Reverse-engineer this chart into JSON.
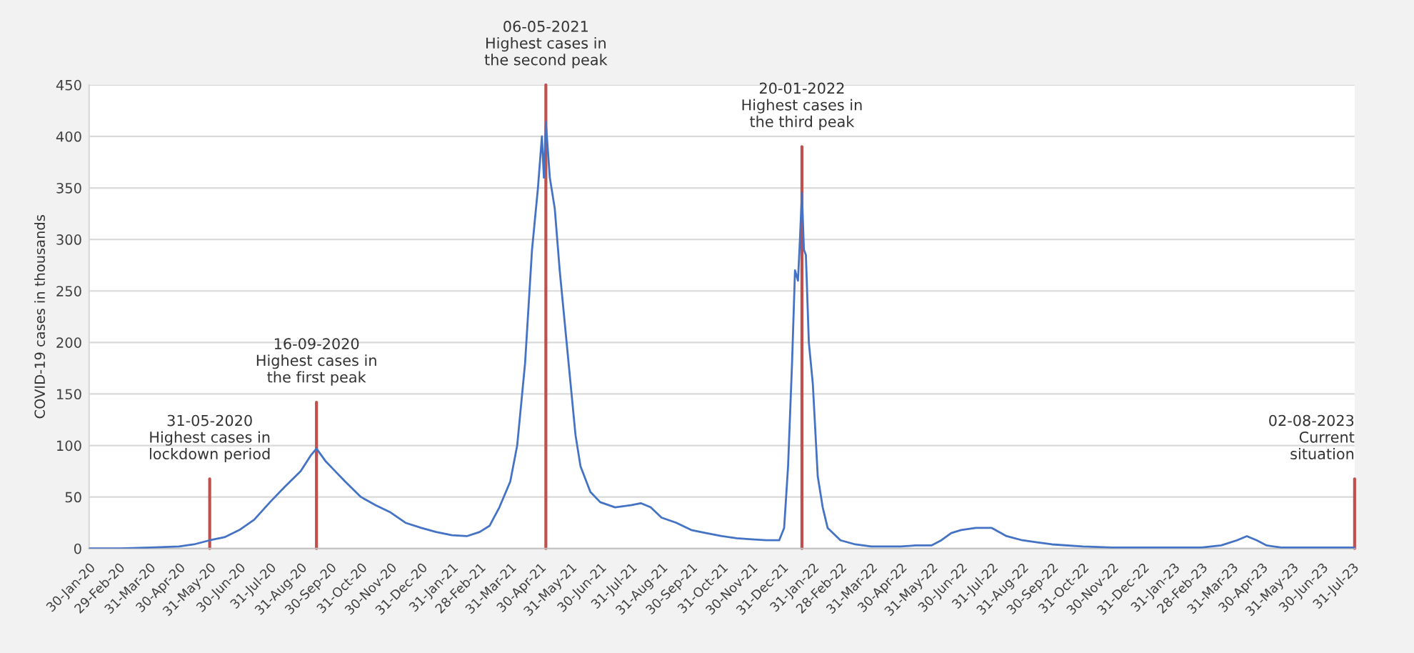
{
  "chart_data": {
    "type": "line",
    "ylabel": "COVID-19 cases in thousands",
    "x": [
      "2020-01-30",
      "2020-03-01",
      "2020-04-01",
      "2020-04-30",
      "2020-05-15",
      "2020-05-31",
      "2020-06-15",
      "2020-06-30",
      "2020-07-15",
      "2020-07-31",
      "2020-08-15",
      "2020-08-31",
      "2020-09-10",
      "2020-09-16",
      "2020-09-25",
      "2020-10-05",
      "2020-10-15",
      "2020-10-31",
      "2020-11-15",
      "2020-11-30",
      "2020-12-15",
      "2020-12-31",
      "2021-01-15",
      "2021-01-31",
      "2021-02-15",
      "2021-02-28",
      "2021-03-10",
      "2021-03-20",
      "2021-03-31",
      "2021-04-07",
      "2021-04-15",
      "2021-04-22",
      "2021-04-28",
      "2021-05-02",
      "2021-05-04",
      "2021-05-06",
      "2021-05-10",
      "2021-05-15",
      "2021-05-20",
      "2021-05-25",
      "2021-05-31",
      "2021-06-05",
      "2021-06-10",
      "2021-06-20",
      "2021-06-30",
      "2021-07-15",
      "2021-07-31",
      "2021-08-10",
      "2021-08-20",
      "2021-08-31",
      "2021-09-15",
      "2021-09-30",
      "2021-10-15",
      "2021-10-31",
      "2021-11-15",
      "2021-11-30",
      "2021-12-15",
      "2021-12-28",
      "2022-01-02",
      "2022-01-06",
      "2022-01-10",
      "2022-01-13",
      "2022-01-16",
      "2022-01-18",
      "2022-01-20",
      "2022-01-22",
      "2022-01-24",
      "2022-01-27",
      "2022-01-31",
      "2022-02-05",
      "2022-02-10",
      "2022-02-15",
      "2022-02-28",
      "2022-03-15",
      "2022-03-31",
      "2022-04-30",
      "2022-05-15",
      "2022-05-31",
      "2022-06-10",
      "2022-06-20",
      "2022-06-30",
      "2022-07-15",
      "2022-07-31",
      "2022-08-15",
      "2022-08-31",
      "2022-09-15",
      "2022-09-30",
      "2022-10-31",
      "2022-11-30",
      "2022-12-31",
      "2023-01-31",
      "2023-02-28",
      "2023-03-20",
      "2023-04-05",
      "2023-04-15",
      "2023-04-25",
      "2023-05-05",
      "2023-05-20",
      "2023-06-30",
      "2023-08-02"
    ],
    "series": [
      {
        "color": "#4472c4",
        "values": [
          0,
          0,
          1,
          2,
          4,
          8,
          11,
          18,
          28,
          45,
          60,
          75,
          90,
          97,
          85,
          75,
          65,
          50,
          42,
          35,
          25,
          20,
          16,
          13,
          12,
          16,
          22,
          40,
          65,
          100,
          180,
          290,
          350,
          400,
          360,
          414,
          360,
          330,
          270,
          220,
          160,
          110,
          80,
          55,
          45,
          40,
          42,
          44,
          40,
          30,
          25,
          18,
          15,
          12,
          10,
          9,
          8,
          8,
          20,
          80,
          180,
          270,
          260,
          300,
          345,
          290,
          285,
          200,
          160,
          70,
          40,
          20,
          8,
          4,
          2,
          2,
          3,
          3,
          8,
          15,
          18,
          20,
          20,
          12,
          8,
          6,
          4,
          2,
          1,
          1,
          1,
          1,
          3,
          8,
          12,
          8,
          3,
          1,
          1,
          1
        ]
      }
    ],
    "xlim": [
      "2020-01-30",
      "2023-08-02"
    ],
    "xticks": [
      {
        "value": "2020-01-30",
        "label": "30-Jan-20"
      },
      {
        "value": "2020-02-29",
        "label": "29-Feb-20"
      },
      {
        "value": "2020-03-31",
        "label": "31-Mar-20"
      },
      {
        "value": "2020-04-30",
        "label": "30-Apr-20"
      },
      {
        "value": "2020-05-31",
        "label": "31-May-20"
      },
      {
        "value": "2020-06-30",
        "label": "30-Jun-20"
      },
      {
        "value": "2020-07-31",
        "label": "31-Jul-20"
      },
      {
        "value": "2020-08-31",
        "label": "31-Aug-20"
      },
      {
        "value": "2020-09-30",
        "label": "30-Sep-20"
      },
      {
        "value": "2020-10-31",
        "label": "31-Oct-20"
      },
      {
        "value": "2020-11-30",
        "label": "30-Nov-20"
      },
      {
        "value": "2020-12-31",
        "label": "31-Dec-20"
      },
      {
        "value": "2021-01-31",
        "label": "31-Jan-21"
      },
      {
        "value": "2021-02-28",
        "label": "28-Feb-21"
      },
      {
        "value": "2021-03-31",
        "label": "31-Mar-21"
      },
      {
        "value": "2021-04-30",
        "label": "30-Apr-21"
      },
      {
        "value": "2021-05-31",
        "label": "31-May-21"
      },
      {
        "value": "2021-06-30",
        "label": "30-Jun-21"
      },
      {
        "value": "2021-07-31",
        "label": "31-Jul-21"
      },
      {
        "value": "2021-08-31",
        "label": "31-Aug-21"
      },
      {
        "value": "2021-09-30",
        "label": "30-Sep-21"
      },
      {
        "value": "2021-10-31",
        "label": "31-Oct-21"
      },
      {
        "value": "2021-11-30",
        "label": "30-Nov-21"
      },
      {
        "value": "2021-12-31",
        "label": "31-Dec-21"
      },
      {
        "value": "2022-01-31",
        "label": "31-Jan-22"
      },
      {
        "value": "2022-02-28",
        "label": "28-Feb-22"
      },
      {
        "value": "2022-03-31",
        "label": "31-Mar-22"
      },
      {
        "value": "2022-04-30",
        "label": "30-Apr-22"
      },
      {
        "value": "2022-05-31",
        "label": "31-May-22"
      },
      {
        "value": "2022-06-30",
        "label": "30-Jun-22"
      },
      {
        "value": "2022-07-31",
        "label": "31-Jul-22"
      },
      {
        "value": "2022-08-31",
        "label": "31-Aug-22"
      },
      {
        "value": "2022-09-30",
        "label": "30-Sep-22"
      },
      {
        "value": "2022-10-31",
        "label": "31-Oct-22"
      },
      {
        "value": "2022-11-30",
        "label": "30-Nov-22"
      },
      {
        "value": "2022-12-31",
        "label": "31-Dec-22"
      },
      {
        "value": "2023-01-31",
        "label": "31-Jan-23"
      },
      {
        "value": "2023-02-28",
        "label": "28-Feb-23"
      },
      {
        "value": "2023-03-31",
        "label": "31-Mar-23"
      },
      {
        "value": "2023-04-30",
        "label": "30-Apr-23"
      },
      {
        "value": "2023-05-31",
        "label": "31-May-23"
      },
      {
        "value": "2023-06-30",
        "label": "30-Jun-23"
      },
      {
        "value": "2023-07-31",
        "label": "31-Jul-23"
      }
    ],
    "ylim": [
      0,
      450
    ],
    "yticks": [
      0,
      50,
      100,
      150,
      200,
      250,
      300,
      350,
      400,
      450
    ],
    "grid": "y",
    "marker": "none",
    "line_style": "solid",
    "ref_lines": [
      {
        "axis": "x",
        "value": "2020-05-31",
        "label": "31-05-2020\nHighest cases in\nlockdown period",
        "color": "#c0504d"
      },
      {
        "axis": "x",
        "value": "2020-09-16",
        "label": "16-09-2020\nHighest cases in\nthe first peak",
        "color": "#c0504d"
      },
      {
        "axis": "x",
        "value": "2021-05-06",
        "label": "06-05-2021\nHighest cases in\nthe second peak",
        "color": "#c0504d"
      },
      {
        "axis": "x",
        "value": "2022-01-20",
        "label": "20-01-2022\nHighest cases in\nthe third peak",
        "color": "#c0504d"
      },
      {
        "axis": "x",
        "value": "2023-08-02",
        "label": "02-08-2023\nCurrent\nsituation",
        "color": "#c0504d"
      }
    ]
  }
}
